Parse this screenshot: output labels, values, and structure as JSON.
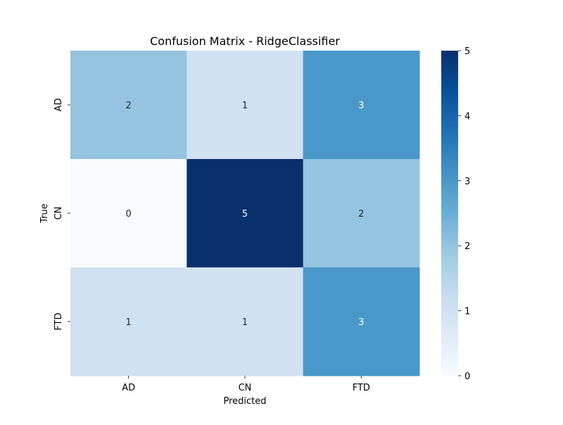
{
  "chart_data": {
    "type": "heatmap",
    "title": "Confusion Matrix - RidgeClassifier",
    "xlabel": "Predicted",
    "ylabel": "True",
    "x_categories": [
      "AD",
      "CN",
      "FTD"
    ],
    "y_categories": [
      "AD",
      "CN",
      "FTD"
    ],
    "values": [
      [
        2,
        1,
        3
      ],
      [
        0,
        5,
        2
      ],
      [
        1,
        1,
        3
      ]
    ],
    "colorbar": {
      "range": [
        0,
        5
      ],
      "ticks": [
        "0",
        "1",
        "2",
        "3",
        "4",
        "5"
      ]
    },
    "colormap": [
      "#f7fbff",
      "#deebf7",
      "#c6dbef",
      "#9ecae1",
      "#6baed6",
      "#4292c6",
      "#2171b5",
      "#08519c",
      "#08306b"
    ],
    "annotation_colors": {
      "dark": "#262626",
      "light": "#ffffff"
    }
  }
}
